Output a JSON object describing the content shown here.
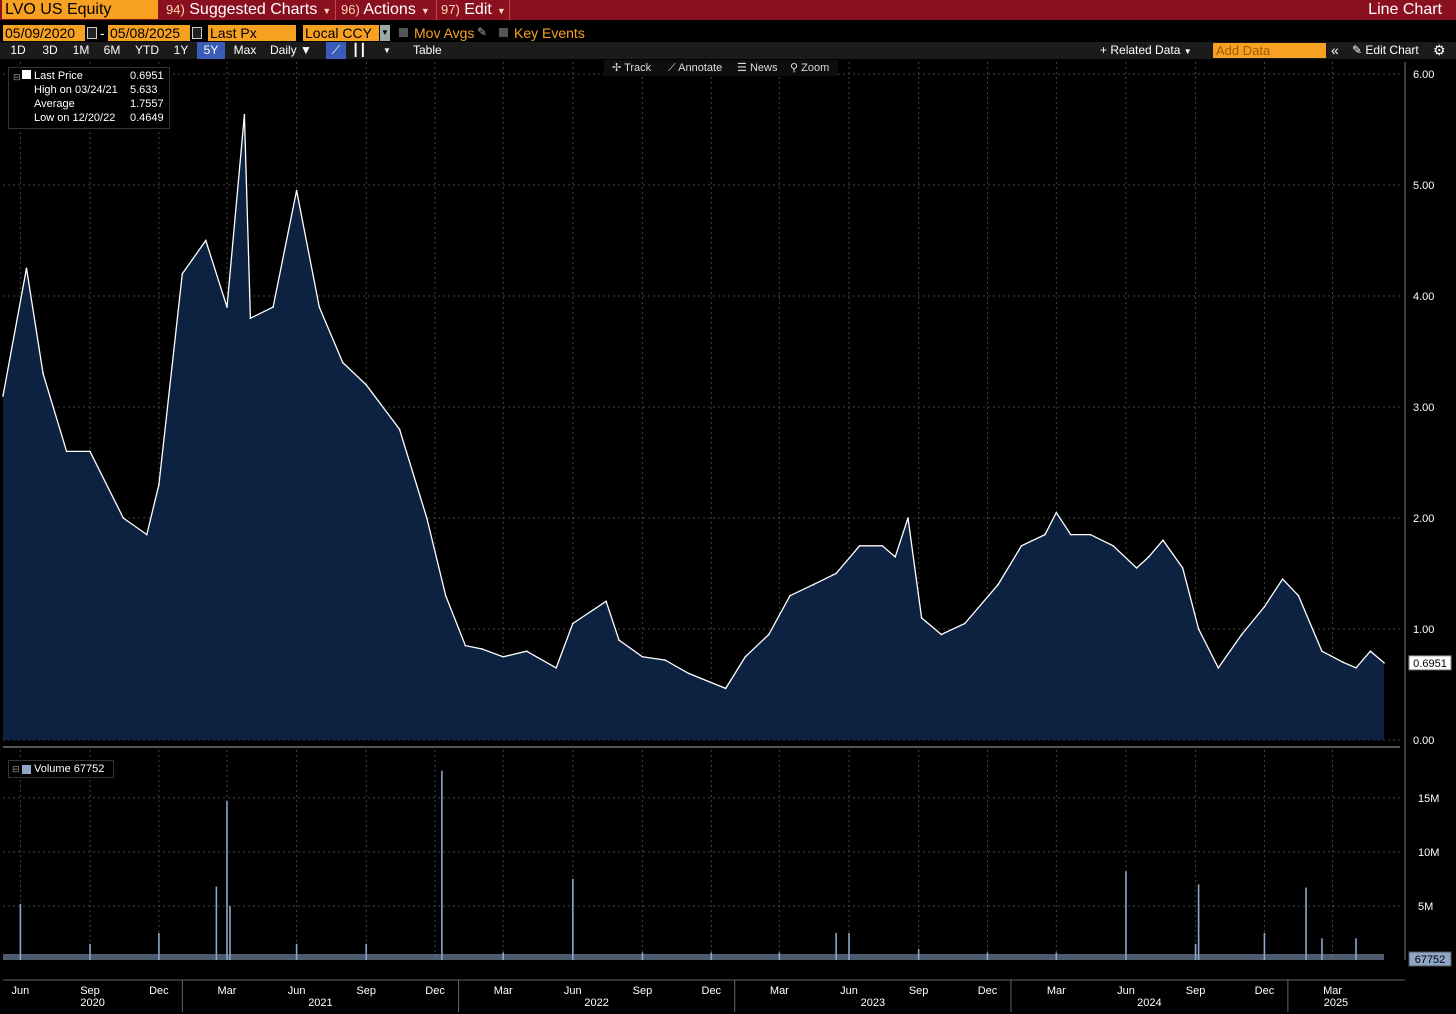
{
  "top_bar": {
    "ticker": "LVO US Equity",
    "menus": [
      {
        "num": "94)",
        "label": "Suggested Charts"
      },
      {
        "num": "96)",
        "label": "Actions"
      },
      {
        "num": "97)",
        "label": "Edit"
      }
    ],
    "title": "Line Chart"
  },
  "options": {
    "start_date": "05/09/2020",
    "end_date": "05/08/2025",
    "field": "Last Px",
    "currency": "Local CCY",
    "mov_avgs": "Mov Avgs",
    "key_events": "Key Events"
  },
  "periods": [
    "1D",
    "3D",
    "1M",
    "6M",
    "YTD",
    "1Y",
    "5Y",
    "Max"
  ],
  "active_period": "5Y",
  "frequency": "Daily",
  "controls": {
    "table": "Table",
    "related_data": "Related Data",
    "add_data_placeholder": "Add Data",
    "edit_chart": "Edit Chart"
  },
  "chart_toolbar": [
    "Track",
    "Annotate",
    "News",
    "Zoom"
  ],
  "price_legend": [
    {
      "label": "Last Price",
      "value": "0.6951"
    },
    {
      "label": "High on 03/24/21",
      "value": "5.633"
    },
    {
      "label": "Average",
      "value": "1.7557"
    },
    {
      "label": "Low on 12/20/22",
      "value": "0.4649"
    }
  ],
  "volume_legend": {
    "label": "Volume",
    "value": "67752"
  },
  "colors": {
    "accent_orange": "#f7a122",
    "header_red": "#8a1020",
    "area_fill": "#0c2240",
    "line": "#ffffff",
    "volume_bar": "#8ea6c8"
  },
  "chart_data": [
    {
      "type": "area",
      "x": [
        "2020-05-09",
        "2020-06-09",
        "2020-07-01",
        "2020-08-01",
        "2020-09-01",
        "2020-10-15",
        "2020-11-15",
        "2020-12-01",
        "2021-01-01",
        "2021-02-01",
        "2021-03-01",
        "2021-03-24",
        "2021-04-01",
        "2021-05-01",
        "2021-06-01",
        "2021-07-01",
        "2021-08-01",
        "2021-09-01",
        "2021-10-15",
        "2021-11-20",
        "2021-12-15",
        "2022-01-10",
        "2022-02-01",
        "2022-03-01",
        "2022-04-01",
        "2022-05-10",
        "2022-06-01",
        "2022-07-15",
        "2022-08-01",
        "2022-09-01",
        "2022-10-01",
        "2022-11-01",
        "2022-12-20",
        "2023-01-15",
        "2023-02-15",
        "2023-03-15",
        "2023-04-15",
        "2023-05-15",
        "2023-06-15",
        "2023-07-15",
        "2023-08-01",
        "2023-08-18",
        "2023-09-05",
        "2023-10-01",
        "2023-11-01",
        "2023-12-15",
        "2024-01-15",
        "2024-02-15",
        "2024-03-01",
        "2024-03-20",
        "2024-04-15",
        "2024-05-15",
        "2024-06-15",
        "2024-07-01",
        "2024-07-20",
        "2024-08-15",
        "2024-09-05",
        "2024-10-01",
        "2024-11-01",
        "2024-12-01",
        "2024-12-25",
        "2025-01-15",
        "2025-02-15",
        "2025-03-15",
        "2025-04-01",
        "2025-04-20",
        "2025-05-08"
      ],
      "y": [
        3.1,
        4.25,
        3.3,
        2.6,
        2.6,
        2.0,
        1.85,
        2.3,
        4.2,
        4.5,
        3.9,
        5.633,
        3.8,
        3.9,
        4.95,
        3.9,
        3.4,
        3.2,
        2.8,
        2.0,
        1.3,
        0.85,
        0.82,
        0.75,
        0.8,
        0.65,
        1.05,
        1.25,
        0.9,
        0.75,
        0.72,
        0.6,
        0.4649,
        0.75,
        0.95,
        1.3,
        1.4,
        1.5,
        1.75,
        1.75,
        1.65,
        2.0,
        1.1,
        0.95,
        1.05,
        1.4,
        1.75,
        1.85,
        2.05,
        1.85,
        1.85,
        1.75,
        1.55,
        1.65,
        1.8,
        1.55,
        1.0,
        0.65,
        0.95,
        1.2,
        1.45,
        1.3,
        0.8,
        0.7,
        0.65,
        0.8,
        0.6951
      ],
      "ylim": [
        0,
        6
      ],
      "y_ticks": [
        "0.00",
        "1.00",
        "2.00",
        "3.00",
        "4.00",
        "5.00",
        "6.00"
      ],
      "last_value_label": "0.6951",
      "grid": true
    },
    {
      "type": "bar",
      "x": [
        "2020-06-01",
        "2020-09-01",
        "2020-12-01",
        "2021-02-15",
        "2021-03-01",
        "2021-03-05",
        "2021-06-01",
        "2021-09-01",
        "2021-12-10",
        "2022-03-01",
        "2022-06-01",
        "2022-09-01",
        "2022-12-01",
        "2023-03-01",
        "2023-05-15",
        "2023-06-01",
        "2023-09-01",
        "2023-12-01",
        "2024-03-01",
        "2024-06-01",
        "2024-09-01",
        "2024-09-05",
        "2024-12-01",
        "2025-01-25",
        "2025-02-15",
        "2025-04-01"
      ],
      "values": [
        5200000,
        1500000,
        2500000,
        6800000,
        14700000,
        5000000,
        1500000,
        1500000,
        17500000,
        700000,
        7500000,
        700000,
        700000,
        700000,
        2500000,
        2500000,
        1000000,
        700000,
        700000,
        8200000,
        1500000,
        7000000,
        2500000,
        6700000,
        2000000,
        2000000
      ],
      "ylim": [
        0,
        18500000
      ],
      "y_ticks": [
        "5M",
        "10M",
        "15M"
      ],
      "last_value_label": "67752",
      "x_ticks": [
        "Jun",
        "Sep",
        "Dec",
        "Mar",
        "Jun",
        "Sep",
        "Dec",
        "Mar",
        "Jun",
        "Sep",
        "Dec",
        "Mar",
        "Jun",
        "Sep",
        "Dec",
        "Mar",
        "Jun",
        "Sep",
        "Dec",
        "Mar"
      ],
      "x_years": [
        "2020",
        "2021",
        "2022",
        "2023",
        "2024",
        "2025"
      ]
    }
  ]
}
